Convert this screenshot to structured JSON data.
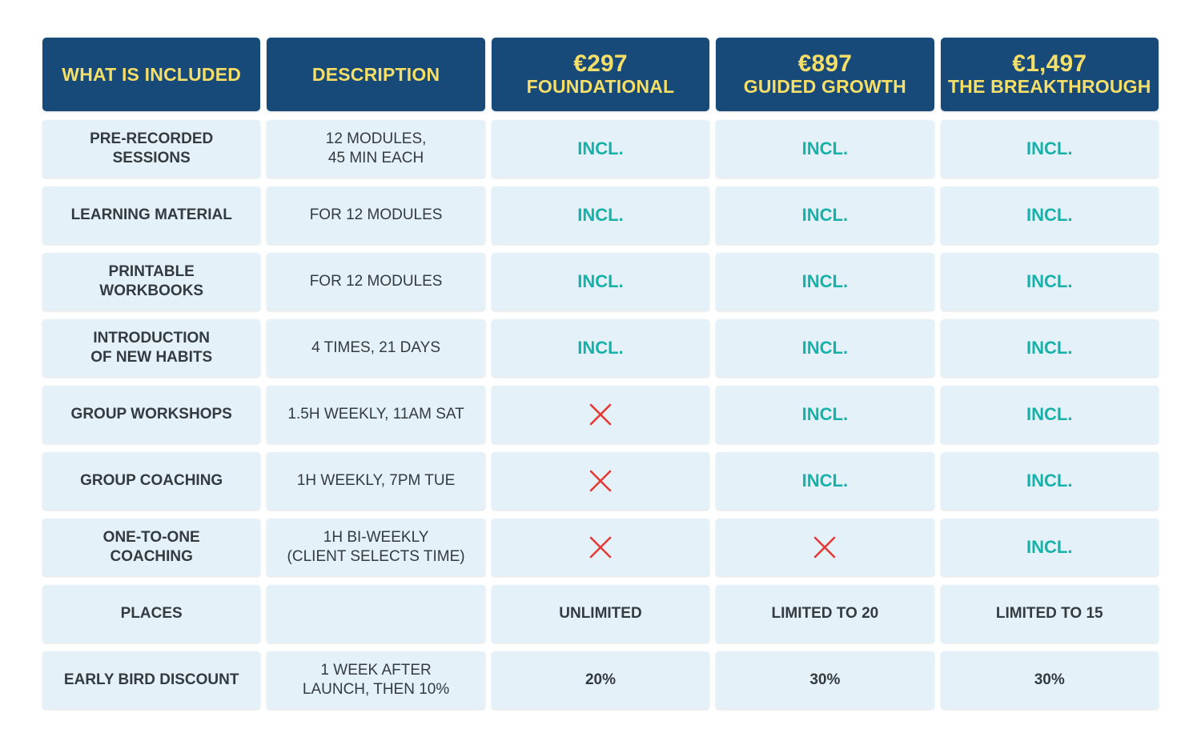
{
  "header": {
    "col1": "WHAT IS INCLUDED",
    "col2": "DESCRIPTION",
    "plans": [
      {
        "price": "€297",
        "name": "FOUNDATIONAL"
      },
      {
        "price": "€897",
        "name": "GUIDED GROWTH"
      },
      {
        "price": "€1,497",
        "name": "THE BREAKTHROUGH"
      }
    ]
  },
  "status": {
    "included": "INCL.",
    "not_included_icon": "cross-icon"
  },
  "colors": {
    "header_bg": "#174a78",
    "header_text": "#f6df69",
    "cell_bg": "#e4f1f8",
    "included": "#18b1aa",
    "cross": "#e53935"
  },
  "rows": [
    {
      "feature": [
        "PRE-RECORDED",
        "SESSIONS"
      ],
      "description": [
        "12 MODULES,",
        "45 MIN EACH"
      ],
      "values": [
        "INCL.",
        "INCL.",
        "INCL."
      ]
    },
    {
      "feature": [
        "LEARNING MATERIAL"
      ],
      "description": [
        "FOR 12 MODULES"
      ],
      "values": [
        "INCL.",
        "INCL.",
        "INCL."
      ]
    },
    {
      "feature": [
        "PRINTABLE",
        "WORKBOOKS"
      ],
      "description": [
        "FOR 12 MODULES"
      ],
      "values": [
        "INCL.",
        "INCL.",
        "INCL."
      ]
    },
    {
      "feature": [
        "INTRODUCTION",
        "OF NEW HABITS"
      ],
      "description": [
        "4 TIMES, 21 DAYS"
      ],
      "values": [
        "INCL.",
        "INCL.",
        "INCL."
      ]
    },
    {
      "feature": [
        "GROUP WORKSHOPS"
      ],
      "description": [
        "1.5H WEEKLY, 11AM SAT"
      ],
      "values": [
        "X",
        "INCL.",
        "INCL."
      ]
    },
    {
      "feature": [
        "GROUP COACHING"
      ],
      "description": [
        "1H WEEKLY, 7PM TUE"
      ],
      "values": [
        "X",
        "INCL.",
        "INCL."
      ]
    },
    {
      "feature": [
        "ONE-TO-ONE",
        "COACHING"
      ],
      "description": [
        "1H BI-WEEKLY",
        "(CLIENT SELECTS TIME)"
      ],
      "values": [
        "X",
        "X",
        "INCL."
      ]
    },
    {
      "feature": [
        "PLACES"
      ],
      "description": [],
      "values": [
        "UNLIMITED",
        "LIMITED TO 20",
        "LIMITED TO 15"
      ]
    },
    {
      "feature": [
        "EARLY BIRD DISCOUNT"
      ],
      "description": [
        "1 WEEK AFTER",
        "LAUNCH, THEN 10%"
      ],
      "values": [
        "20%",
        "30%",
        "30%"
      ]
    }
  ]
}
